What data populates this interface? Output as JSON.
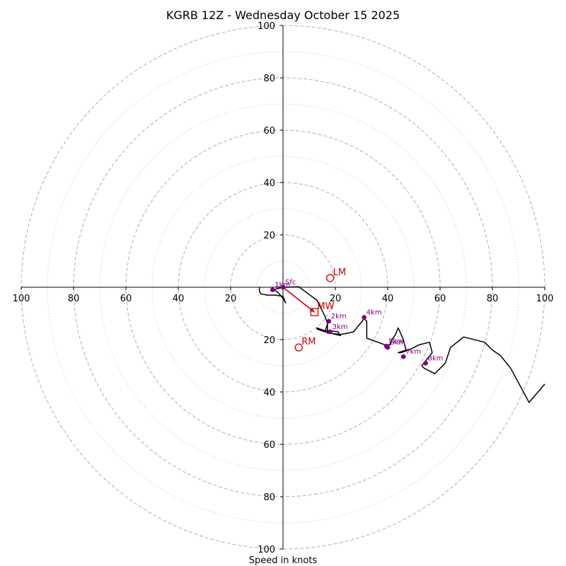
{
  "chart_data": {
    "type": "hodograph",
    "title": "KGRB 12Z - Wednesday October 15 2025",
    "xlabel": "Speed in knots",
    "range": [
      -100,
      100
    ],
    "rings": {
      "major": [
        20,
        40,
        60,
        80,
        100
      ],
      "minor": [
        10,
        30,
        50,
        70,
        90
      ]
    },
    "x_ticks": [
      {
        "value": -100,
        "label": "100"
      },
      {
        "value": -80,
        "label": "80"
      },
      {
        "value": -60,
        "label": "60"
      },
      {
        "value": -40,
        "label": "40"
      },
      {
        "value": -20,
        "label": "20"
      },
      {
        "value": 20,
        "label": "20"
      },
      {
        "value": 40,
        "label": "40"
      },
      {
        "value": 60,
        "label": "60"
      },
      {
        "value": 80,
        "label": "80"
      },
      {
        "value": 100,
        "label": "100"
      }
    ],
    "y_ticks": [
      {
        "value": 100,
        "label": "100"
      },
      {
        "value": 80,
        "label": "80"
      },
      {
        "value": 60,
        "label": "60"
      },
      {
        "value": 40,
        "label": "40"
      },
      {
        "value": 20,
        "label": "20"
      },
      {
        "value": -20,
        "label": "20"
      },
      {
        "value": -40,
        "label": "40"
      },
      {
        "value": -60,
        "label": "60"
      },
      {
        "value": -80,
        "label": "80"
      },
      {
        "value": -100,
        "label": "100"
      }
    ],
    "trace": [
      [
        -9,
        0
      ],
      [
        -9,
        -1.5
      ],
      [
        -8.5,
        -2.5
      ],
      [
        -6,
        -3
      ],
      [
        -3,
        -3
      ],
      [
        0,
        -3.5
      ],
      [
        1,
        -6
      ],
      [
        0.5,
        -5
      ],
      [
        -1,
        -3
      ],
      [
        -2.5,
        -1.5
      ],
      [
        -4,
        -1
      ],
      [
        -2,
        -0.5
      ],
      [
        0,
        0
      ],
      [
        2,
        0
      ],
      [
        6,
        0.2
      ],
      [
        13,
        -5
      ],
      [
        16,
        -11
      ],
      [
        17,
        -14
      ],
      [
        17,
        -17
      ],
      [
        13,
        -15.5
      ],
      [
        13,
        -16
      ],
      [
        16,
        -17
      ],
      [
        22,
        -18.5
      ],
      [
        21,
        -17
      ],
      [
        17,
        -16.5
      ],
      [
        16,
        -17
      ],
      [
        17,
        -14
      ],
      [
        17,
        -17.5
      ],
      [
        22,
        -18
      ],
      [
        25,
        -17.5
      ],
      [
        27,
        -17
      ],
      [
        31,
        -12
      ],
      [
        32,
        -13
      ],
      [
        32,
        -17.5
      ],
      [
        32,
        -19.5
      ],
      [
        39,
        -22
      ],
      [
        41,
        -22
      ],
      [
        41,
        -21
      ],
      [
        43,
        -18
      ],
      [
        44,
        -15.5
      ],
      [
        46,
        -20
      ],
      [
        47,
        -24
      ],
      [
        44,
        -25
      ],
      [
        45,
        -25
      ],
      [
        48,
        -24
      ],
      [
        52,
        -22
      ],
      [
        56,
        -21
      ],
      [
        57,
        -25
      ],
      [
        53,
        -30
      ],
      [
        54,
        -31
      ],
      [
        58,
        -33
      ],
      [
        62,
        -29
      ],
      [
        64,
        -23
      ],
      [
        69,
        -19
      ],
      [
        77,
        -21
      ],
      [
        80,
        -24
      ],
      [
        83,
        -26
      ],
      [
        87,
        -31
      ],
      [
        94,
        -44
      ],
      [
        100,
        -37
      ]
    ],
    "height_points": [
      {
        "label": "Sfc",
        "u": 0,
        "v": 0
      },
      {
        "label": "1km",
        "u": -4,
        "v": -1
      },
      {
        "label": "2km",
        "u": 17.5,
        "v": -13
      },
      {
        "label": "3km",
        "u": 18,
        "v": -17
      },
      {
        "label": "4km",
        "u": 31,
        "v": -11.5
      },
      {
        "label": "5km",
        "u": 39.5,
        "v": -22.5
      },
      {
        "label": "6km",
        "u": 40,
        "v": -23
      },
      {
        "label": "7km",
        "u": 46,
        "v": -26.5
      },
      {
        "label": "8km",
        "u": 54.5,
        "v": -29
      }
    ],
    "storm_motions": [
      {
        "label": "LM",
        "u": 18,
        "v": 3.5,
        "marker": "circle"
      },
      {
        "label": "MW",
        "u": 12,
        "v": -9.5,
        "marker": "square"
      },
      {
        "label": "RM",
        "u": 6,
        "v": -23,
        "marker": "circle"
      }
    ],
    "shear_vector": {
      "from": [
        0,
        0
      ],
      "to": [
        12,
        -9.5
      ]
    },
    "colors": {
      "trace": "#000000",
      "height_points": "#800080",
      "storm_motion": "#cc0000",
      "grid": "#bbbbbb",
      "axes": "#000000"
    }
  }
}
